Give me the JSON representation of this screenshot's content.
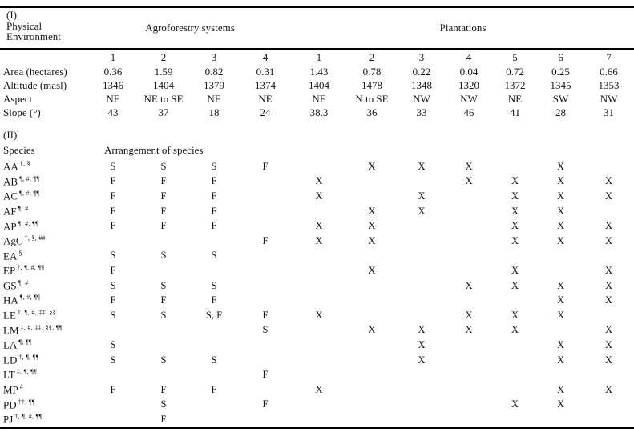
{
  "page": {
    "background_color": "#ffffff",
    "text_color": "#161616",
    "rule_color": "#000000"
  },
  "table": {
    "section_i": {
      "label_lines": [
        "(I)",
        "Physical",
        "Environment"
      ],
      "group_headers": [
        {
          "label": "Agroforestry systems",
          "colspan": 4
        },
        {
          "label": "Plantations",
          "colspan": 7
        }
      ],
      "column_numbers": [
        "1",
        "2",
        "3",
        "4",
        "1",
        "2",
        "3",
        "4",
        "5",
        "6",
        "7"
      ],
      "rows": [
        {
          "label": "Area (hectares)",
          "values": [
            "0.36",
            "1.59",
            "0.82",
            "0.31",
            "1.43",
            "0.78",
            "0.22",
            "0.04",
            "0.72",
            "0.25",
            "0.66"
          ]
        },
        {
          "label": "Altitude (masl)",
          "values": [
            "1346",
            "1404",
            "1379",
            "1374",
            "1404",
            "1478",
            "1348",
            "1320",
            "1372",
            "1345",
            "1353"
          ]
        },
        {
          "label": "Aspect",
          "values": [
            "NE",
            "NE to SE",
            "NE",
            "NE",
            "NE",
            "N to SE",
            "NW",
            "NW",
            "NE",
            "SW",
            "NW"
          ]
        },
        {
          "label": "Slope (°)",
          "values": [
            "43",
            "37",
            "18",
            "24",
            "38.3",
            "36",
            "33",
            "46",
            "41",
            "28",
            "31"
          ]
        }
      ]
    },
    "section_ii": {
      "label": "(II)",
      "species_header": "Species",
      "arrangement_header": "Arrangement of species",
      "species": [
        {
          "code": "AA",
          "sup": "†, §",
          "cells": [
            "S",
            "S",
            "S",
            "F",
            "",
            "X",
            "X",
            "X",
            "",
            "X",
            ""
          ]
        },
        {
          "code": "AB",
          "sup": "¶, #, ¶¶",
          "cells": [
            "F",
            "F",
            "F",
            "",
            "X",
            "",
            "",
            "X",
            "X",
            "X",
            "X"
          ]
        },
        {
          "code": "AC",
          "sup": "¶, #, ¶¶",
          "cells": [
            "F",
            "F",
            "F",
            "",
            "X",
            "",
            "X",
            "",
            "X",
            "X",
            "X"
          ]
        },
        {
          "code": "AF",
          "sup": "¶, #",
          "cells": [
            "F",
            "F",
            "F",
            "",
            "",
            "X",
            "X",
            "",
            "X",
            "X",
            ""
          ]
        },
        {
          "code": "AP",
          "sup": "¶, #, ¶¶",
          "cells": [
            "F",
            "F",
            "F",
            "",
            "X",
            "X",
            "",
            "",
            "X",
            "X",
            "X"
          ]
        },
        {
          "code": "AgC",
          "sup": "†, §, ##",
          "cells": [
            "",
            "",
            "",
            "F",
            "X",
            "X",
            "",
            "",
            "X",
            "X",
            "X"
          ]
        },
        {
          "code": "EA",
          "sup": "§",
          "cells": [
            "S",
            "S",
            "S",
            "",
            "",
            "",
            "",
            "",
            "",
            "",
            ""
          ]
        },
        {
          "code": "EP",
          "sup": "†, ¶, #, ¶¶",
          "cells": [
            "F",
            "",
            "",
            "",
            "",
            "X",
            "",
            "",
            "X",
            "",
            "X"
          ]
        },
        {
          "code": "GS",
          "sup": "¶, #",
          "cells": [
            "S",
            "S",
            "S",
            "",
            "",
            "",
            "",
            "X",
            "X",
            "X",
            "X"
          ]
        },
        {
          "code": "HA",
          "sup": "¶, #, ¶¶",
          "cells": [
            "F",
            "F",
            "F",
            "",
            "",
            "",
            "",
            "",
            "",
            "X",
            "X"
          ]
        },
        {
          "code": "LE",
          "sup": "†, ¶, #, ‡‡, §§",
          "cells": [
            "S",
            "S",
            "S, F",
            "F",
            "X",
            "",
            "",
            "X",
            "X",
            "X",
            ""
          ]
        },
        {
          "code": "LM",
          "sup": "‡, #, ‡‡, §§, ¶¶",
          "cells": [
            "",
            "",
            "",
            "S",
            "",
            "X",
            "X",
            "X",
            "X",
            "",
            "X"
          ]
        },
        {
          "code": "LA",
          "sup": "¶, ¶¶",
          "cells": [
            "S",
            "",
            "",
            "",
            "",
            "",
            "X",
            "",
            "",
            "X",
            "X"
          ]
        },
        {
          "code": "LD",
          "sup": "†, ¶, ¶¶",
          "cells": [
            "S",
            "S",
            "S",
            "",
            "",
            "",
            "X",
            "",
            "",
            "X",
            "X"
          ]
        },
        {
          "code": "LT",
          "sup": "‡, ¶, ¶¶",
          "cells": [
            "",
            "",
            "",
            "F",
            "",
            "",
            "",
            "",
            "",
            "",
            ""
          ]
        },
        {
          "code": "MP",
          "sup": "#",
          "cells": [
            "F",
            "F",
            "F",
            "",
            "X",
            "",
            "",
            "",
            "",
            "X",
            "X"
          ]
        },
        {
          "code": "PD",
          "sup": "††, ¶¶",
          "cells": [
            "",
            "S",
            "",
            "F",
            "",
            "",
            "",
            "",
            "X",
            "X",
            ""
          ]
        },
        {
          "code": "PJ",
          "sup": "†, ¶, #, ¶¶",
          "cells": [
            "",
            "F",
            "",
            "",
            "",
            "",
            "",
            "",
            "",
            "",
            ""
          ]
        }
      ]
    }
  }
}
